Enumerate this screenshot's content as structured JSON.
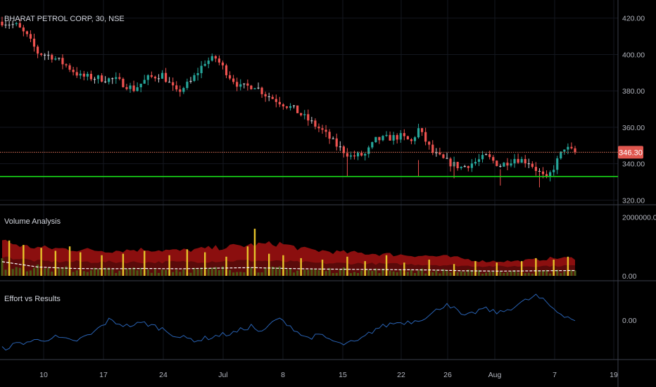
{
  "chart_data": [
    {
      "type": "candlestick",
      "title": "BHARAT PETROL CORP, 30, NSE",
      "price_axis_ticks": [
        {
          "value": 420,
          "label": "420.00"
        },
        {
          "value": 400,
          "label": "400.00"
        },
        {
          "value": 380,
          "label": "380.00"
        },
        {
          "value": 360,
          "label": "360.00"
        },
        {
          "value": 340,
          "label": "340.00"
        },
        {
          "value": 320,
          "label": "320.00"
        }
      ],
      "ylim": [
        319,
        428
      ],
      "last_price": 346.3,
      "last_price_label": "346.30",
      "support_level": 333,
      "x_ticks": [
        "10",
        "17",
        "24",
        "Jul",
        "8",
        "15",
        "22",
        "26",
        "Aug",
        "7",
        "19"
      ],
      "price_path": [
        [
          0,
          418
        ],
        [
          4,
          416
        ],
        [
          7,
          410
        ],
        [
          10,
          401
        ],
        [
          14,
          399
        ],
        [
          18,
          394
        ],
        [
          22,
          388
        ],
        [
          27,
          387
        ],
        [
          32,
          386
        ],
        [
          37,
          381
        ],
        [
          41,
          387
        ],
        [
          45,
          389
        ],
        [
          49,
          379
        ],
        [
          53,
          385
        ],
        [
          57,
          396
        ],
        [
          60,
          398
        ],
        [
          64,
          388
        ],
        [
          67,
          382
        ],
        [
          71,
          383
        ],
        [
          74,
          378
        ],
        [
          78,
          374
        ],
        [
          82,
          370
        ],
        [
          86,
          364
        ],
        [
          90,
          358
        ],
        [
          94,
          350
        ],
        [
          98,
          344
        ],
        [
          102,
          345
        ],
        [
          105,
          353
        ],
        [
          108,
          354
        ],
        [
          112,
          355
        ],
        [
          115,
          352
        ],
        [
          117,
          359
        ],
        [
          121,
          346
        ],
        [
          125,
          341
        ],
        [
          129,
          338
        ],
        [
          133,
          341
        ],
        [
          136,
          344
        ],
        [
          140,
          339
        ],
        [
          144,
          343
        ],
        [
          148,
          341
        ],
        [
          151,
          335
        ],
        [
          153,
          331
        ],
        [
          155,
          338
        ],
        [
          158,
          349
        ],
        [
          161,
          346
        ]
      ]
    },
    {
      "type": "area",
      "title": "Volume Analysis",
      "y_ticks": [
        {
          "value": 2000000,
          "label": "2000000.00"
        },
        {
          "value": 0,
          "label": "0.00"
        }
      ],
      "ylim": [
        0,
        2200000
      ],
      "band_upper": [
        [
          0,
          1200000
        ],
        [
          6,
          1000000
        ],
        [
          12,
          950000
        ],
        [
          20,
          900000
        ],
        [
          30,
          850000
        ],
        [
          40,
          900000
        ],
        [
          50,
          850000
        ],
        [
          60,
          950000
        ],
        [
          70,
          1050000
        ],
        [
          78,
          1100000
        ],
        [
          85,
          900000
        ],
        [
          95,
          800000
        ],
        [
          105,
          750000
        ],
        [
          115,
          700000
        ],
        [
          125,
          650000
        ],
        [
          135,
          500000
        ],
        [
          145,
          500000
        ],
        [
          155,
          600000
        ],
        [
          161,
          600000
        ]
      ],
      "band_mid": [
        [
          0,
          650000
        ],
        [
          10,
          500000
        ],
        [
          20,
          480000
        ],
        [
          30,
          470000
        ],
        [
          40,
          460000
        ],
        [
          50,
          470000
        ],
        [
          60,
          500000
        ],
        [
          70,
          520000
        ],
        [
          80,
          480000
        ],
        [
          90,
          430000
        ],
        [
          100,
          420000
        ],
        [
          110,
          400000
        ],
        [
          120,
          380000
        ],
        [
          130,
          340000
        ],
        [
          140,
          320000
        ],
        [
          150,
          330000
        ],
        [
          161,
          350000
        ]
      ],
      "avg_line": [
        [
          0,
          480000
        ],
        [
          10,
          300000
        ],
        [
          20,
          250000
        ],
        [
          30,
          240000
        ],
        [
          40,
          250000
        ],
        [
          50,
          240000
        ],
        [
          60,
          260000
        ],
        [
          70,
          280000
        ],
        [
          80,
          250000
        ],
        [
          90,
          230000
        ],
        [
          100,
          220000
        ],
        [
          110,
          210000
        ],
        [
          120,
          200000
        ],
        [
          130,
          170000
        ],
        [
          140,
          160000
        ],
        [
          150,
          170000
        ],
        [
          161,
          180000
        ]
      ],
      "spikes": [
        {
          "i": 2,
          "v": 1200000
        },
        {
          "i": 6,
          "v": 1050000
        },
        {
          "i": 11,
          "v": 950000
        },
        {
          "i": 15,
          "v": 850000
        },
        {
          "i": 19,
          "v": 1000000
        },
        {
          "i": 22,
          "v": 800000
        },
        {
          "i": 28,
          "v": 700000
        },
        {
          "i": 34,
          "v": 750000
        },
        {
          "i": 40,
          "v": 850000
        },
        {
          "i": 47,
          "v": 700000
        },
        {
          "i": 52,
          "v": 900000
        },
        {
          "i": 57,
          "v": 800000
        },
        {
          "i": 63,
          "v": 650000
        },
        {
          "i": 69,
          "v": 1000000
        },
        {
          "i": 71,
          "v": 1600000
        },
        {
          "i": 75,
          "v": 750000
        },
        {
          "i": 79,
          "v": 700000
        },
        {
          "i": 84,
          "v": 600000
        },
        {
          "i": 90,
          "v": 550000
        },
        {
          "i": 97,
          "v": 650000
        },
        {
          "i": 102,
          "v": 500000
        },
        {
          "i": 108,
          "v": 700000
        },
        {
          "i": 113,
          "v": 450000
        },
        {
          "i": 120,
          "v": 550000
        },
        {
          "i": 127,
          "v": 400000
        },
        {
          "i": 133,
          "v": 500000
        },
        {
          "i": 139,
          "v": 450000
        },
        {
          "i": 146,
          "v": 500000
        },
        {
          "i": 150,
          "v": 600000
        },
        {
          "i": 155,
          "v": 550000
        },
        {
          "i": 159,
          "v": 650000
        }
      ]
    },
    {
      "type": "line",
      "title": "Effort vs Results",
      "y_ticks": [
        {
          "value": 0,
          "label": "0.00"
        }
      ],
      "ylim": [
        -1.3,
        1.3
      ],
      "series": [
        {
          "values": [
            [
              0,
              -1.0
            ],
            [
              5,
              -0.8
            ],
            [
              10,
              -0.7
            ],
            [
              15,
              -0.6
            ],
            [
              20,
              -0.75
            ],
            [
              25,
              -0.5
            ],
            [
              30,
              0.0
            ],
            [
              35,
              -0.2
            ],
            [
              40,
              -0.1
            ],
            [
              45,
              -0.3
            ],
            [
              50,
              -0.6
            ],
            [
              55,
              -0.7
            ],
            [
              60,
              -0.55
            ],
            [
              65,
              -0.45
            ],
            [
              70,
              -0.2
            ],
            [
              73,
              -0.45
            ],
            [
              77,
              0.05
            ],
            [
              80,
              -0.1
            ],
            [
              85,
              -0.6
            ],
            [
              90,
              -0.55
            ],
            [
              95,
              -0.85
            ],
            [
              100,
              -0.75
            ],
            [
              105,
              -0.3
            ],
            [
              110,
              -0.1
            ],
            [
              115,
              -0.05
            ],
            [
              120,
              0.15
            ],
            [
              125,
              0.6
            ],
            [
              130,
              0.1
            ],
            [
              135,
              0.4
            ],
            [
              140,
              0.25
            ],
            [
              145,
              0.55
            ],
            [
              150,
              0.85
            ],
            [
              153,
              0.6
            ],
            [
              156,
              0.3
            ],
            [
              161,
              0.0
            ]
          ]
        }
      ]
    }
  ],
  "colors": {
    "background": "#000000",
    "grid": "#14171f",
    "separator": "#3a3e4a",
    "candle_up": "#26a69a",
    "candle_down": "#ef5350",
    "candle_neutral": "#d1d4dc",
    "support_line": "#18d618",
    "last_price_line": "#e0735a",
    "last_price_tag": "#e0574f",
    "volume_band": "#8b0f0f",
    "volume_inner": "#5a0a0a",
    "volume_low": "#4a5b16",
    "volume_spike": "#e6c32a",
    "volume_avg": "#ffffff",
    "effort_line": "#2962b3"
  }
}
